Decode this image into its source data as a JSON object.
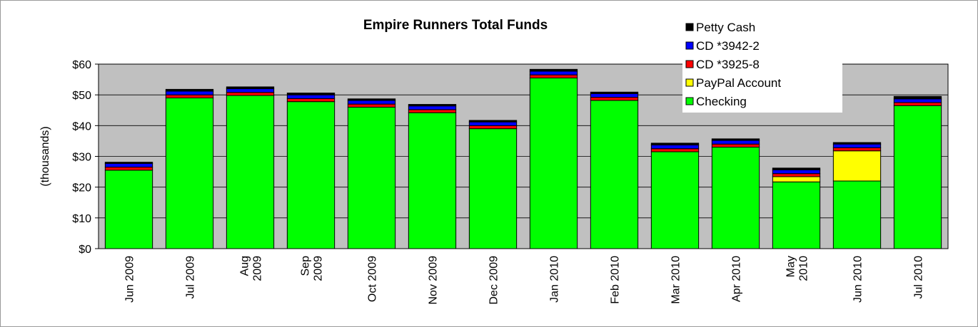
{
  "chart_data": {
    "type": "bar",
    "stacked": true,
    "title": "Empire Runners Total Funds",
    "xlabel": "",
    "ylabel": "(thousands)",
    "ylim": [
      0,
      60
    ],
    "yticks": [
      0,
      10,
      20,
      30,
      40,
      50,
      60
    ],
    "ytick_labels": [
      "$0",
      "$10",
      "$20",
      "$30",
      "$40",
      "$50",
      "$60"
    ],
    "grid": true,
    "legend_position": "top-right",
    "categories": [
      "Jun 2009",
      "Jul 2009",
      "Aug 2009",
      "Sep 2009",
      "Oct 2009",
      "Nov 2009",
      "Dec 2009",
      "Jan 2010",
      "Feb 2010",
      "Mar 2010",
      "Apr 2010",
      "May 2010",
      "Jun 2010",
      "Jul 2010"
    ],
    "category_label_lines": [
      [
        "Jun 2009"
      ],
      [
        "Jul 2009"
      ],
      [
        "Aug",
        "2009"
      ],
      [
        "Sep",
        "2009"
      ],
      [
        "Oct 2009"
      ],
      [
        "Nov 2009"
      ],
      [
        "Dec 2009"
      ],
      [
        "Jan 2010"
      ],
      [
        "Feb 2010"
      ],
      [
        "Mar 2010"
      ],
      [
        "Apr 2010"
      ],
      [
        "May",
        "2010"
      ],
      [
        "Jun 2010"
      ],
      [
        "Jul 2010"
      ]
    ],
    "series": [
      {
        "name": "Checking",
        "color": "#00ff00",
        "values": [
          25.5,
          49.0,
          49.8,
          47.8,
          46.0,
          44.2,
          39.0,
          55.5,
          48.2,
          31.5,
          33.0,
          21.7,
          22.0,
          46.5
        ]
      },
      {
        "name": "PayPal Account",
        "color": "#ffff00",
        "values": [
          0,
          0,
          0,
          0,
          0,
          0,
          0,
          0,
          0,
          0,
          0,
          1.7,
          9.8,
          0
        ]
      },
      {
        "name": "CD *3925-8",
        "color": "#ff0000",
        "values": [
          1.0,
          1.0,
          1.0,
          1.0,
          1.0,
          1.0,
          1.0,
          1.0,
          1.0,
          1.0,
          1.0,
          1.0,
          1.0,
          1.0
        ]
      },
      {
        "name": "CD *3942-2",
        "color": "#0000ff",
        "values": [
          1.2,
          1.2,
          1.2,
          1.2,
          1.2,
          1.2,
          1.2,
          1.2,
          1.2,
          1.2,
          1.2,
          1.2,
          1.2,
          1.2
        ]
      },
      {
        "name": "Petty Cash",
        "color": "#000000",
        "values": [
          0.4,
          0.6,
          0.6,
          0.6,
          0.5,
          0.5,
          0.5,
          0.6,
          0.5,
          0.6,
          0.5,
          0.6,
          0.5,
          0.8
        ]
      }
    ],
    "legend_order": [
      "Petty Cash",
      "CD *3942-2",
      "CD *3925-8",
      "PayPal Account",
      "Checking"
    ],
    "colors": {
      "plot_background": "#c0c0c0",
      "gridline": "#000000",
      "border": "#000000"
    }
  }
}
